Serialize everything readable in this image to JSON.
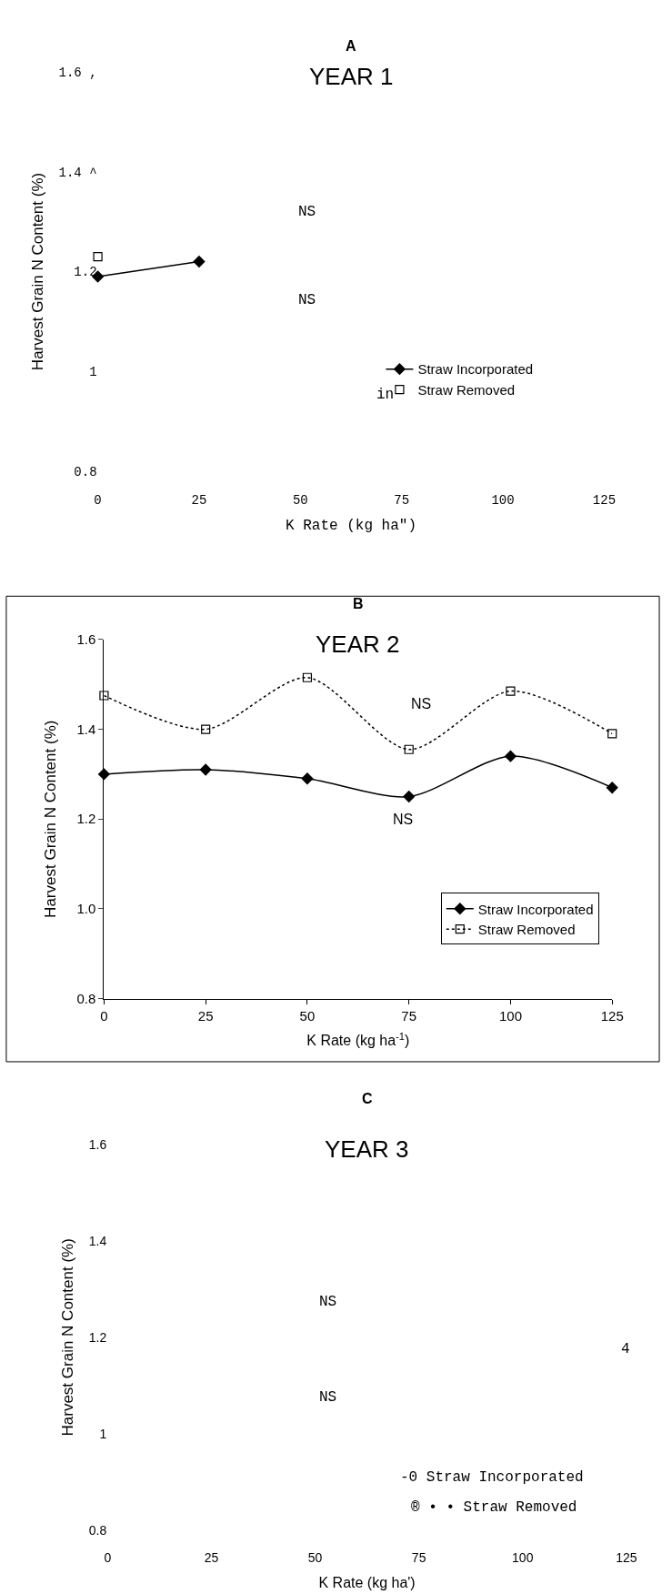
{
  "chart_data": [
    {
      "type": "line",
      "title": "A",
      "subtitle": "YEAR 1",
      "xlabel": "K Rate (kg ha\")",
      "ylabel": "Harvest Grain N Content (%)",
      "x": [
        0,
        25
      ],
      "series": [
        {
          "name": "Straw Incorporated",
          "color": "#000000",
          "marker": "diamond",
          "line_style": "solid",
          "values": [
            1.19,
            1.22
          ]
        },
        {
          "name": "Straw Removed",
          "color": "#000000",
          "marker": "square",
          "values": [
            1.23,
            null
          ]
        }
      ],
      "xlim": [
        0,
        125
      ],
      "xticks": [
        0,
        25,
        50,
        75,
        100,
        125
      ],
      "ylim": [
        0.8,
        1.6
      ],
      "yticks": [
        {
          "value": 0.8,
          "label": "0.8"
        },
        {
          "value": 1.0,
          "label": "1"
        },
        {
          "value": 1.2,
          "label": "1.2"
        },
        {
          "value": 1.4,
          "label": "1.4 ^"
        },
        {
          "value": 1.6,
          "label": "1.6 ,"
        }
      ],
      "annotations": [
        "NS",
        "NS",
        "in"
      ],
      "legend": "right"
    },
    {
      "type": "line",
      "title": "B",
      "subtitle": "YEAR 2",
      "xlabel": "K Rate (kg ha$^{-1}$)",
      "ylabel": "Harvest Grain N Content (%)",
      "x": [
        0,
        25,
        50,
        75,
        100,
        125
      ],
      "series": [
        {
          "name": "Straw Incorporated",
          "color": "#000000",
          "marker": "diamond",
          "line_style": "solid",
          "values": [
            1.3,
            1.31,
            1.29,
            1.25,
            1.34,
            1.27
          ]
        },
        {
          "name": "Straw Removed",
          "color": "#000000",
          "marker": "square",
          "line_style": "dotted",
          "values": [
            1.475,
            1.4,
            1.515,
            1.355,
            1.485,
            1.39
          ]
        }
      ],
      "xlim": [
        0,
        125
      ],
      "xticks": [
        0,
        25,
        50,
        75,
        100,
        125
      ],
      "ylim": [
        0.8,
        1.6
      ],
      "yticks": [
        {
          "value": 0.8,
          "label": "0.8"
        },
        {
          "value": 1.0,
          "label": "1.0"
        },
        {
          "value": 1.2,
          "label": "1.2"
        },
        {
          "value": 1.4,
          "label": "1.4"
        },
        {
          "value": 1.6,
          "label": "1.6"
        }
      ],
      "annotations": [
        "NS",
        "NS"
      ],
      "legend": "bottom right"
    },
    {
      "type": "line",
      "title": "C",
      "subtitle": "YEAR 3",
      "xlabel": "K Rate (kg ha')",
      "ylabel": "Harvest Grain N Content (%)",
      "xlim": [
        0,
        125
      ],
      "xticks": [
        0,
        25,
        50,
        75,
        100,
        125
      ],
      "ylim": [
        0.8,
        1.6
      ],
      "yticks": [
        {
          "value": 0.8,
          "label": "0.8"
        },
        {
          "value": 1.0,
          "label": "1"
        },
        {
          "value": 1.2,
          "label": "1.2"
        },
        {
          "value": 1.4,
          "label": "1.4"
        },
        {
          "value": 1.6,
          "label": "1.6"
        }
      ],
      "annotations": [
        "NS",
        "NS",
        "4",
        "-0 Straw Incorporated",
        "® • • Straw Removed"
      ]
    }
  ]
}
